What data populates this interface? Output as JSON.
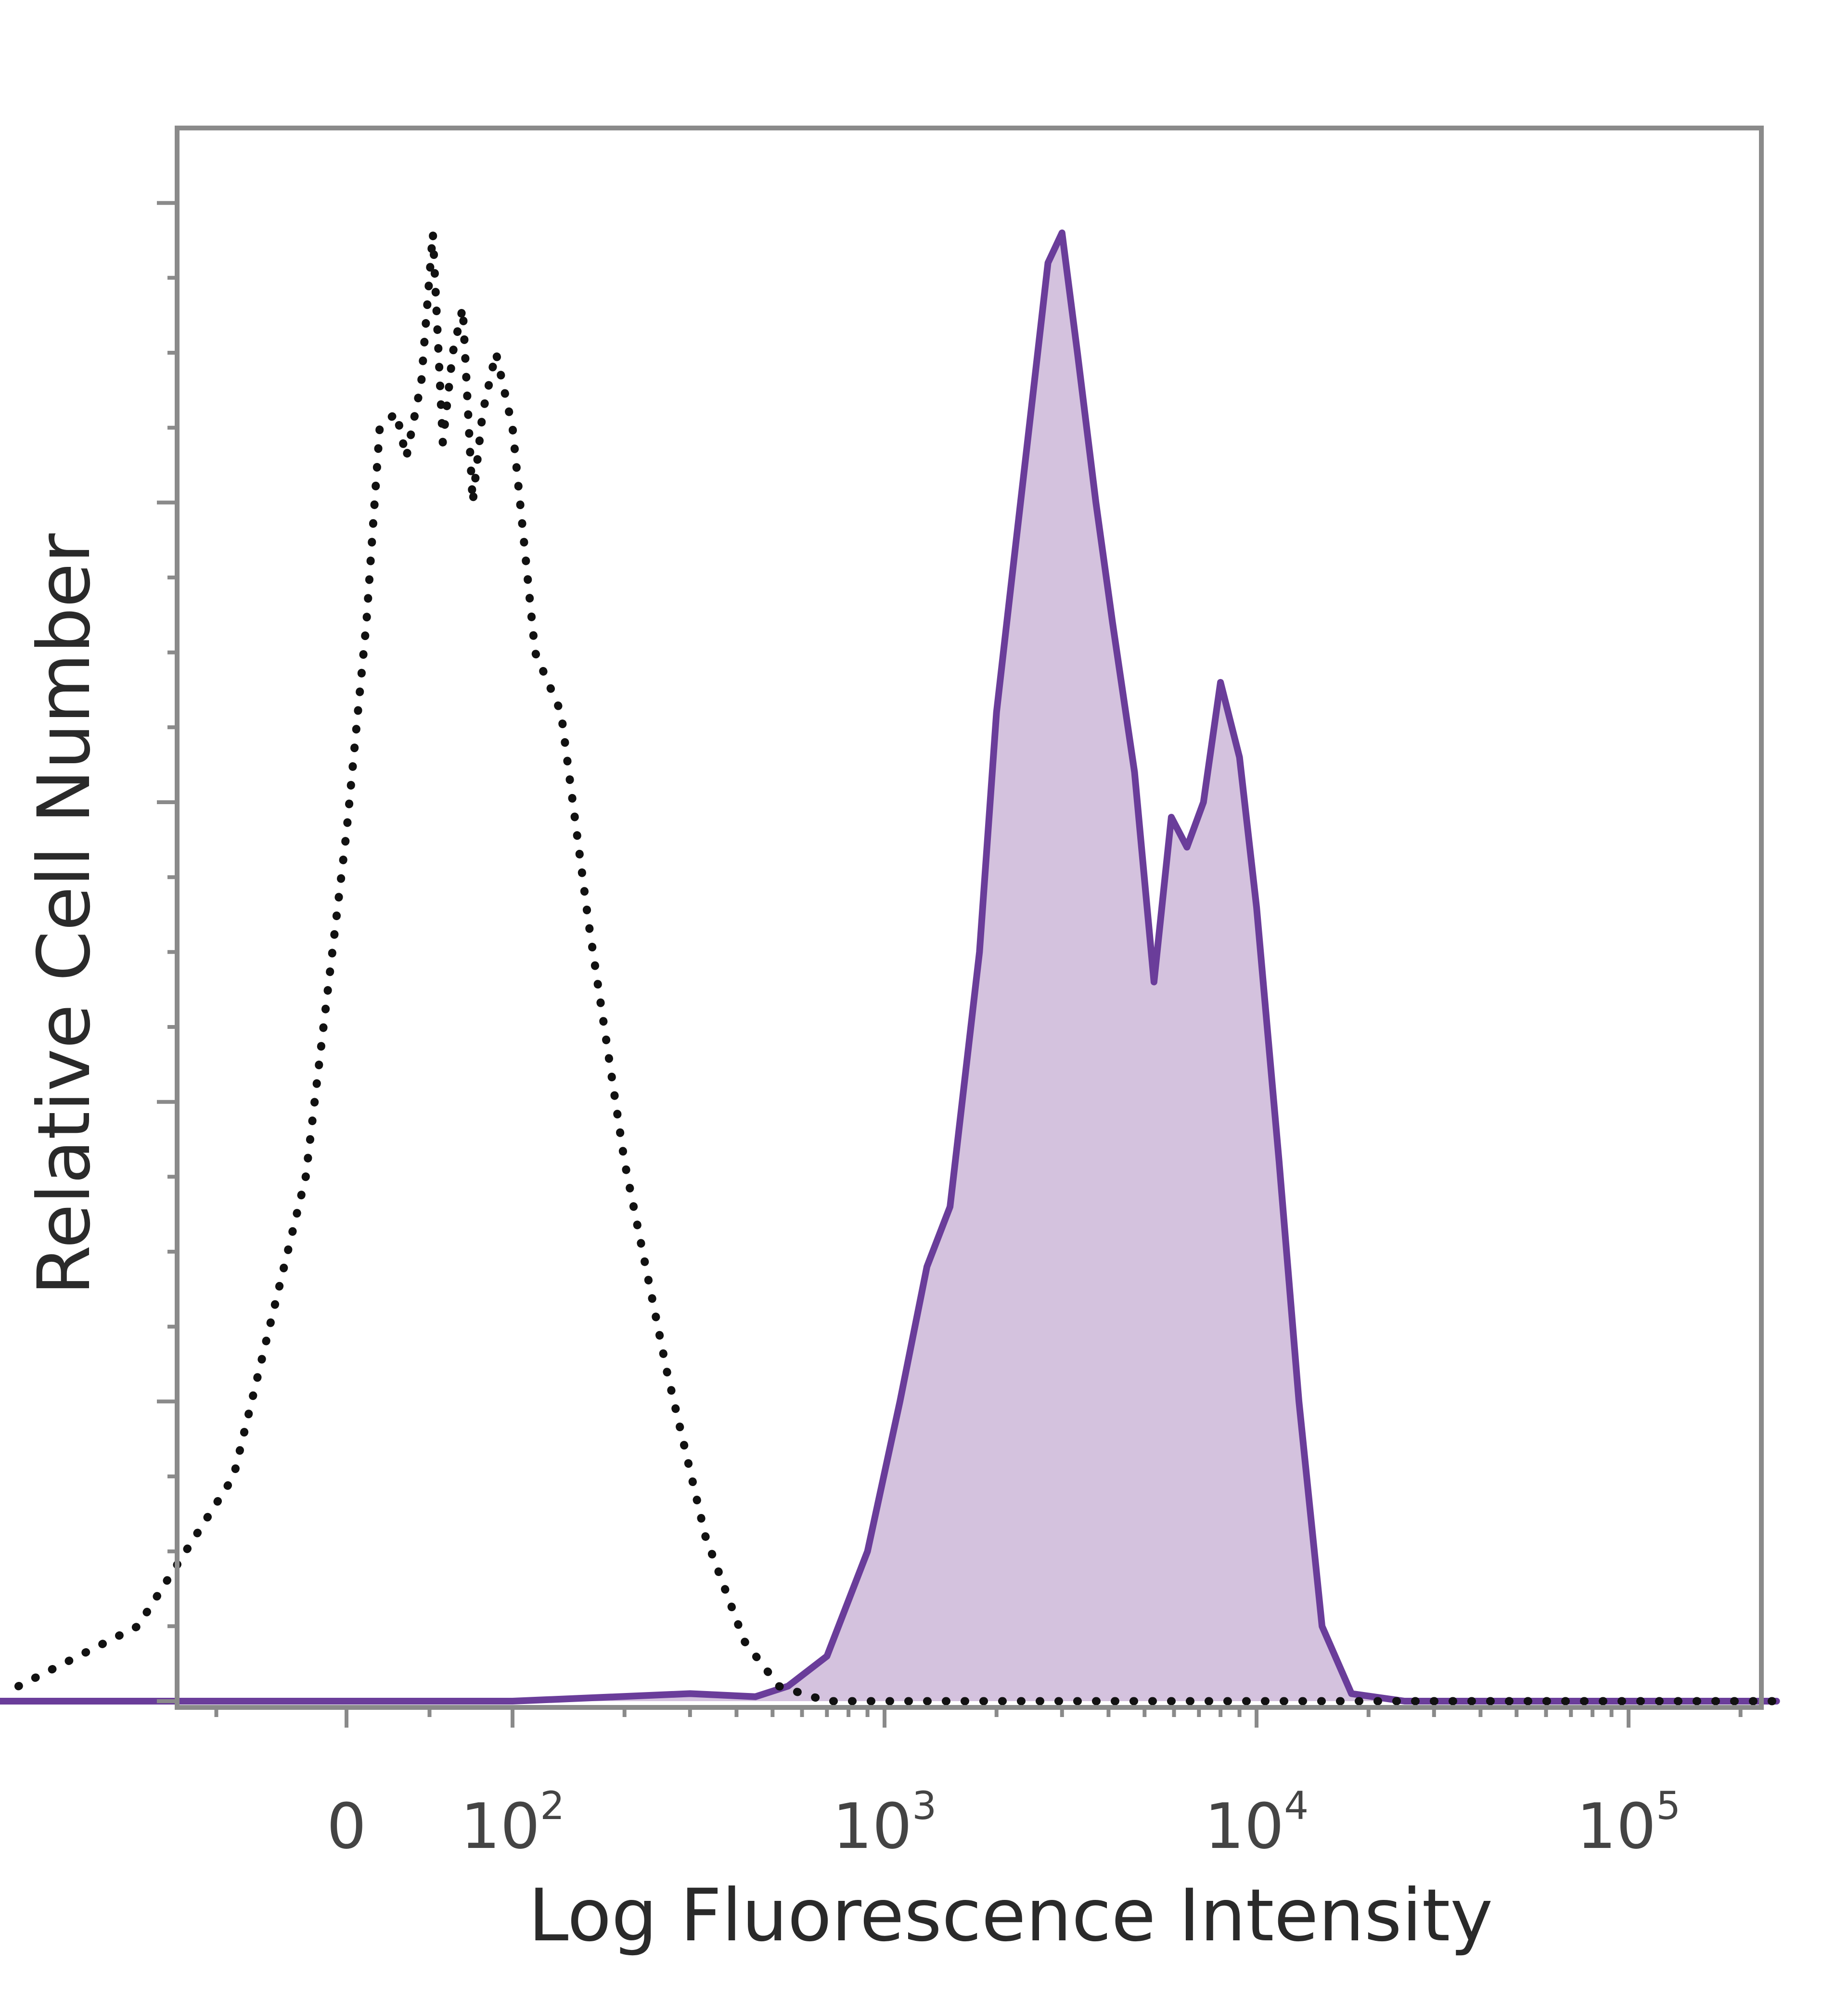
{
  "chart_data": {
    "type": "area",
    "title": "",
    "xlabel": "Log Fluorescence Intensity",
    "ylabel": "Relative Cell Number",
    "x_scale": "biexponential",
    "xlim": [
      -110,
      250000
    ],
    "ylim": [
      0,
      105
    ],
    "grid": false,
    "legend": "none",
    "x_tick_labels": [
      {
        "value": 0,
        "base": "0",
        "exp": ""
      },
      {
        "value": 100,
        "base": "10",
        "exp": "2"
      },
      {
        "value": 1000,
        "base": "10",
        "exp": "3"
      },
      {
        "value": 10000,
        "base": "10",
        "exp": "4"
      },
      {
        "value": 100000,
        "base": "10",
        "exp": "5"
      }
    ],
    "y_ticks": [
      0,
      20,
      40,
      60,
      80,
      100
    ],
    "series": [
      {
        "style": "dotted-outline",
        "color": "#111111",
        "points": [
          [
            -95,
            1
          ],
          [
            -70,
            5
          ],
          [
            -45,
            15
          ],
          [
            -20,
            35
          ],
          [
            0,
            58
          ],
          [
            12,
            72
          ],
          [
            20,
            85
          ],
          [
            30,
            86
          ],
          [
            36,
            83
          ],
          [
            45,
            88
          ],
          [
            52,
            98
          ],
          [
            58,
            84
          ],
          [
            64,
            90
          ],
          [
            70,
            93
          ],
          [
            76,
            80
          ],
          [
            82,
            86
          ],
          [
            90,
            90
          ],
          [
            100,
            85
          ],
          [
            115,
            70
          ],
          [
            135,
            66
          ],
          [
            160,
            52
          ],
          [
            200,
            36
          ],
          [
            260,
            22
          ],
          [
            330,
            11
          ],
          [
            420,
            4
          ],
          [
            520,
            1
          ],
          [
            700,
            0
          ],
          [
            2000,
            0
          ],
          [
            20000,
            0
          ],
          [
            250000,
            0
          ]
        ]
      },
      {
        "style": "filled",
        "color": "#6a3d9a",
        "fill": "#d4c2de",
        "points": [
          [
            -110,
            0
          ],
          [
            100,
            0
          ],
          [
            300,
            0.5
          ],
          [
            450,
            0.3
          ],
          [
            550,
            1
          ],
          [
            700,
            3
          ],
          [
            900,
            10
          ],
          [
            1100,
            20
          ],
          [
            1300,
            29
          ],
          [
            1500,
            33
          ],
          [
            1800,
            50
          ],
          [
            2000,
            66
          ],
          [
            2200,
            75
          ],
          [
            2500,
            87
          ],
          [
            2750,
            96
          ],
          [
            3000,
            98
          ],
          [
            3300,
            90
          ],
          [
            3700,
            80
          ],
          [
            4100,
            72
          ],
          [
            4700,
            62
          ],
          [
            5300,
            48
          ],
          [
            5900,
            59
          ],
          [
            6500,
            57
          ],
          [
            7200,
            60
          ],
          [
            8000,
            68
          ],
          [
            9000,
            63
          ],
          [
            10000,
            53
          ],
          [
            11500,
            36
          ],
          [
            13000,
            20
          ],
          [
            15000,
            5
          ],
          [
            18000,
            0.5
          ],
          [
            25000,
            0
          ],
          [
            250000,
            0
          ]
        ]
      }
    ]
  }
}
